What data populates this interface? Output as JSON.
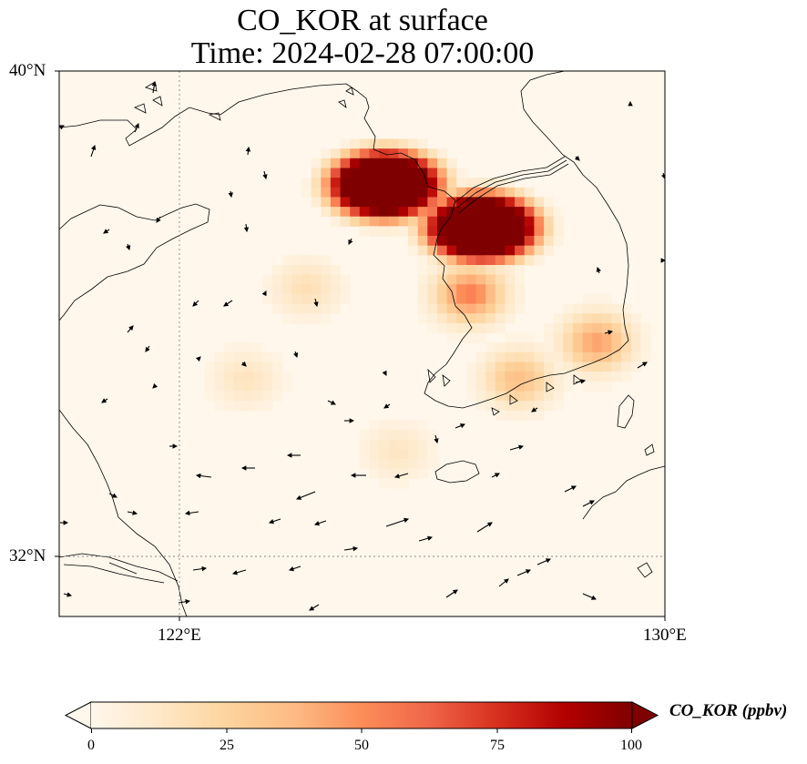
{
  "title": {
    "line1": "CO_KOR at surface",
    "line2": "Time: 2024-02-28 07:00:00"
  },
  "axes": {
    "lat_ticks": [
      {
        "label": "40°N",
        "value": 40
      },
      {
        "label": "32°N",
        "value": 32
      }
    ],
    "lon_ticks": [
      {
        "label": "122°E",
        "value": 122
      },
      {
        "label": "130°E",
        "value": 130
      }
    ],
    "extent": {
      "lon_min": 120,
      "lon_max": 130,
      "lat_min": 31,
      "lat_max": 40
    }
  },
  "colorbar": {
    "label": "CO_KOR (ppbv)",
    "ticks": [
      "0",
      "25",
      "50",
      "75",
      "100"
    ],
    "min": 0,
    "max": 100,
    "extend": "both",
    "colormap": "OrRd",
    "colors": [
      "#fff7ec",
      "#fee8c8",
      "#fdd49e",
      "#fdbb84",
      "#fc8d59",
      "#ef6548",
      "#d7301f",
      "#b30000",
      "#7f0000"
    ]
  },
  "field": {
    "description_free": true,
    "plumes": [
      {
        "lon": 125.3,
        "lat": 38.2,
        "peak": 100
      },
      {
        "lon": 126.9,
        "lat": 37.5,
        "peak": 100
      },
      {
        "lon": 126.7,
        "lat": 36.4,
        "peak": 55
      },
      {
        "lon": 128.8,
        "lat": 35.6,
        "peak": 45
      },
      {
        "lon": 127.5,
        "lat": 35.0,
        "peak": 35
      },
      {
        "lon": 124.0,
        "lat": 36.5,
        "peak": 18
      },
      {
        "lon": 123.0,
        "lat": 35.0,
        "peak": 15
      },
      {
        "lon": 125.5,
        "lat": 33.8,
        "peak": 14
      }
    ]
  }
}
